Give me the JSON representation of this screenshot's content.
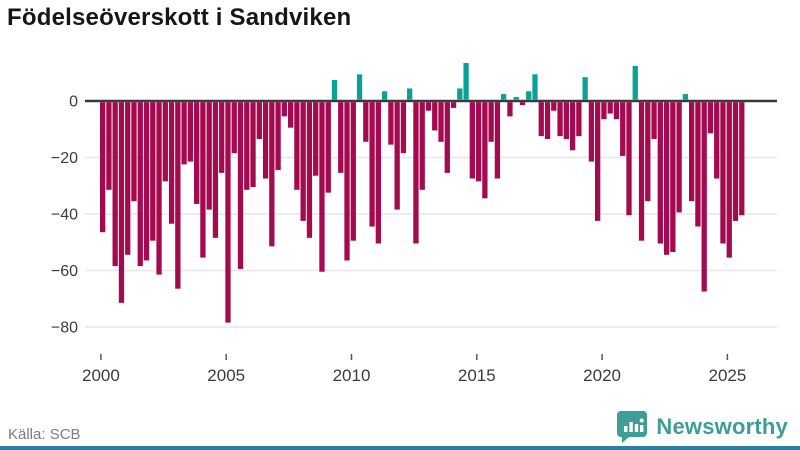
{
  "title": "Födelseöverskott i Sandviken",
  "source": "Källa: SCB",
  "branding": {
    "name": "Newsworthy",
    "color": "#3f9d98",
    "icon": "newsworthy-speech-bubble-chart"
  },
  "colors": {
    "negative": "#a40a4f",
    "positive": "#0ca198",
    "zero_line": "#3a3a3a",
    "grid": "#e7e7e7",
    "axis_text": "#3c3c3c",
    "tick_mark": "#555555",
    "bottom_strip": "#2b7e9c"
  },
  "chart_data": {
    "type": "bar",
    "title": "Födelseöverskott i Sandviken",
    "xlabel": "",
    "ylabel": "",
    "frequency": "quarterly",
    "start_period": "2000-Q1",
    "end_period": "2025-Q3",
    "grid": true,
    "ylim": [
      -85,
      16
    ],
    "yticks": [
      0,
      -20,
      -40,
      -60,
      -80
    ],
    "ytick_labels": [
      "0",
      "−20",
      "−40",
      "−60",
      "−80"
    ],
    "xtick_years": [
      2000,
      2005,
      2010,
      2015,
      2020,
      2025
    ],
    "xtick_labels": [
      "2000",
      "2005",
      "2010",
      "2015",
      "2020",
      "2025"
    ],
    "values": [
      -46,
      -31,
      -58,
      -71,
      -54,
      -35,
      -58,
      -56,
      -49,
      -61,
      -28,
      -43,
      -66,
      -22,
      -21,
      -36,
      -55,
      -38,
      -48,
      -25,
      -78,
      -18,
      -59,
      -31,
      -30,
      -13,
      -27,
      -51,
      -24,
      -5,
      -9,
      -31,
      -42,
      -48,
      -26,
      -60,
      -32,
      7,
      -25,
      -56,
      -49,
      9,
      -14,
      -44,
      -50,
      3,
      -15,
      -38,
      -18,
      4,
      -50,
      -31,
      -3,
      -10,
      -14,
      -25,
      -2,
      4,
      13,
      -27,
      -28,
      -34,
      -14,
      -27,
      2,
      -5,
      1,
      -1,
      3,
      9,
      -12,
      -13,
      -3,
      -12,
      -13,
      -17,
      -12,
      8,
      -21,
      -42,
      -6,
      -4,
      -6,
      -19,
      -40,
      12,
      -49,
      -35,
      -13,
      -50,
      -54,
      -53,
      -39,
      2,
      -35,
      -44,
      -67,
      -11,
      -27,
      -50,
      -55,
      -42,
      -40
    ]
  }
}
